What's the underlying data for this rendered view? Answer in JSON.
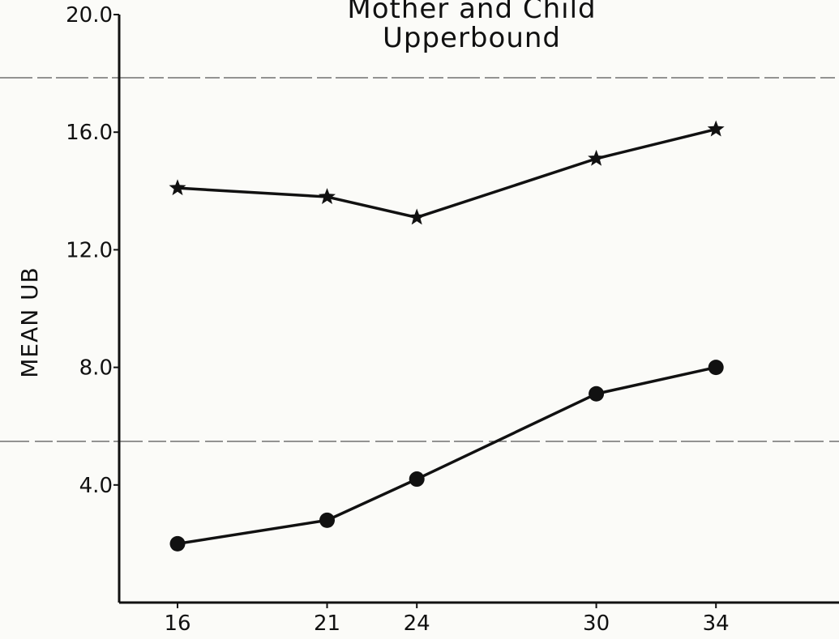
{
  "chart_data": {
    "type": "line",
    "title_line1": "Mother and Child",
    "title_line2": "Upperbound",
    "xlabel": "",
    "ylabel": "MEAN UB",
    "x": [
      16,
      21,
      24,
      30,
      34
    ],
    "x_tick_labels": [
      "16",
      "21",
      "24",
      "30",
      "34"
    ],
    "y_ticks": [
      4.0,
      8.0,
      12.0,
      16.0,
      20.0
    ],
    "y_tick_labels": [
      "4.0",
      "8.0",
      "12.0",
      "16.0",
      "20.0"
    ],
    "xlim": [
      12,
      38.2
    ],
    "ylim": [
      0,
      20.0
    ],
    "grid": false,
    "series": [
      {
        "marker": "star",
        "values": [
          14.1,
          13.8,
          13.1,
          15.1,
          16.1
        ]
      },
      {
        "marker": "circle",
        "values": [
          2.0,
          2.8,
          4.2,
          7.1,
          8.0
        ]
      }
    ]
  }
}
